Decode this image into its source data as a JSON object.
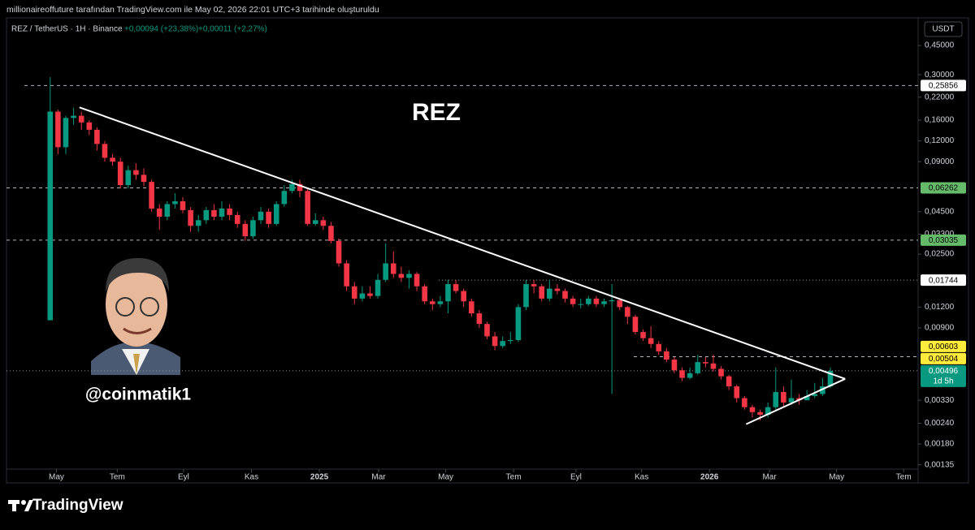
{
  "header": {
    "watermark": "millionaireoffuture tarafından TradingView.com ile May 02, 2026 22:01 UTC+3 tarihinde oluşturuldu"
  },
  "chart_data": {
    "type": "candlestick",
    "symbol": "REZ / TetherUS · 1H · Binance",
    "change_1": "+0,00094 (+23,38%)",
    "change_2": "+0,00011 (+2,27%)",
    "currency": "USDT",
    "annotations": [
      "REZ",
      "@coinmatik1"
    ],
    "up_color": "#089981",
    "down_color": "#f23645",
    "log_scale": true,
    "ylim": [
      0.00105,
      0.66
    ],
    "xlim": [
      -5.6,
      111.25
    ],
    "yticks": [
      {
        "value": 0.45,
        "label": "0,45000"
      },
      {
        "value": 0.3,
        "label": "0,30000"
      },
      {
        "value": 0.22,
        "label": "0,22000"
      },
      {
        "value": 0.16,
        "label": "0,16000"
      },
      {
        "value": 0.12,
        "label": "0,12000"
      },
      {
        "value": 0.09,
        "label": "0,09000"
      },
      {
        "value": 0.045,
        "label": "0,04500"
      },
      {
        "value": 0.033,
        "label": "0,03300"
      },
      {
        "value": 0.025,
        "label": "0,02500"
      },
      {
        "value": 0.012,
        "label": "0,01200"
      },
      {
        "value": 0.009,
        "label": "0,00900"
      },
      {
        "value": 0.0033,
        "label": "0,00330"
      },
      {
        "value": 0.0024,
        "label": "0,00240"
      },
      {
        "value": 0.0018,
        "label": "0,00180"
      },
      {
        "value": 0.00135,
        "label": "0,00135"
      }
    ],
    "xticks": [
      {
        "value": 0.8,
        "label": "May"
      },
      {
        "value": 8.6,
        "label": "Tem"
      },
      {
        "value": 17.1,
        "label": "Eyl"
      },
      {
        "value": 25.8,
        "label": "Kas"
      },
      {
        "value": 34.5,
        "label": "2025"
      },
      {
        "value": 42.1,
        "label": "Mar"
      },
      {
        "value": 50.7,
        "label": "May"
      },
      {
        "value": 59.4,
        "label": "Tem"
      },
      {
        "value": 67.4,
        "label": "Eyl"
      },
      {
        "value": 75.8,
        "label": "Kas"
      },
      {
        "value": 84.5,
        "label": "2026"
      },
      {
        "value": 92.2,
        "label": "Mar"
      },
      {
        "value": 100.8,
        "label": "May"
      },
      {
        "value": 109.4,
        "label": "Tem"
      }
    ],
    "levels": [
      {
        "value": 0.25856,
        "label": "0,25856",
        "box": "#ffffff",
        "text_color": "#000000",
        "line": "dashed",
        "from": -3.3
      },
      {
        "value": 0.06262,
        "label": "0,06262",
        "box": "#66bb6a",
        "text_color": "#000000",
        "line": "dashed",
        "from": -5.6
      },
      {
        "value": 0.03035,
        "label": "0,03035",
        "box": "#66bb6a",
        "text_color": "#000000",
        "line": "dashed",
        "from": -5.6
      },
      {
        "value": 0.01744,
        "label": "0,01744",
        "box": "#ffffff",
        "text_color": "#000000",
        "line": "dotted",
        "from": 49.8
      },
      {
        "value": 0.00603,
        "label": "0,00603",
        "box": "#ffeb3b",
        "text_color": "#000000",
        "line": "dashed",
        "from": 74.8
      },
      {
        "value": 0.00504,
        "label": "0,00504",
        "box": "#ffeb3b",
        "text_color": "#000000",
        "line": "none",
        "from": 74.8
      },
      {
        "value": 0.00496,
        "label": "0,00496",
        "sublabel": "1d 5h",
        "box": "#089981",
        "text_color": "#ffffff",
        "line": "dotted",
        "from": -5.6
      }
    ],
    "trendlines": [
      {
        "from": [
          3.75,
          0.191
        ],
        "to": [
          101.9,
          0.00444
        ]
      },
      {
        "from": [
          89.2,
          0.00237
        ],
        "to": [
          101.9,
          0.00444
        ]
      }
    ],
    "candles": [
      [
        0.01,
        0.29,
        0.01,
        0.18
      ],
      [
        0.18,
        0.185,
        0.1,
        0.11
      ],
      [
        0.11,
        0.17,
        0.1,
        0.165
      ],
      [
        0.165,
        0.19,
        0.15,
        0.17
      ],
      [
        0.17,
        0.18,
        0.14,
        0.155
      ],
      [
        0.155,
        0.16,
        0.13,
        0.14
      ],
      [
        0.14,
        0.145,
        0.105,
        0.115
      ],
      [
        0.115,
        0.12,
        0.09,
        0.095
      ],
      [
        0.095,
        0.1,
        0.085,
        0.09
      ],
      [
        0.09,
        0.095,
        0.062,
        0.065
      ],
      [
        0.065,
        0.085,
        0.062,
        0.08
      ],
      [
        0.08,
        0.088,
        0.07,
        0.075
      ],
      [
        0.075,
        0.082,
        0.064,
        0.068
      ],
      [
        0.068,
        0.07,
        0.045,
        0.047
      ],
      [
        0.047,
        0.05,
        0.035,
        0.042
      ],
      [
        0.042,
        0.052,
        0.04,
        0.05
      ],
      [
        0.05,
        0.058,
        0.047,
        0.052
      ],
      [
        0.052,
        0.055,
        0.044,
        0.046
      ],
      [
        0.046,
        0.048,
        0.034,
        0.037
      ],
      [
        0.037,
        0.043,
        0.034,
        0.04
      ],
      [
        0.04,
        0.048,
        0.038,
        0.046
      ],
      [
        0.046,
        0.05,
        0.04,
        0.042
      ],
      [
        0.042,
        0.052,
        0.04,
        0.047
      ],
      [
        0.047,
        0.05,
        0.04,
        0.043
      ],
      [
        0.043,
        0.045,
        0.036,
        0.038
      ],
      [
        0.038,
        0.04,
        0.03,
        0.032
      ],
      [
        0.032,
        0.042,
        0.031,
        0.04
      ],
      [
        0.04,
        0.048,
        0.038,
        0.045
      ],
      [
        0.045,
        0.047,
        0.036,
        0.038
      ],
      [
        0.038,
        0.052,
        0.037,
        0.05
      ],
      [
        0.05,
        0.065,
        0.048,
        0.06
      ],
      [
        0.06,
        0.07,
        0.058,
        0.066
      ],
      [
        0.066,
        0.07,
        0.055,
        0.06
      ],
      [
        0.06,
        0.062,
        0.037,
        0.038
      ],
      [
        0.038,
        0.044,
        0.037,
        0.04
      ],
      [
        0.04,
        0.042,
        0.035,
        0.037
      ],
      [
        0.037,
        0.039,
        0.029,
        0.03
      ],
      [
        0.03,
        0.031,
        0.021,
        0.022
      ],
      [
        0.022,
        0.023,
        0.015,
        0.016
      ],
      [
        0.016,
        0.017,
        0.0125,
        0.0135
      ],
      [
        0.0135,
        0.016,
        0.013,
        0.0145
      ],
      [
        0.0145,
        0.016,
        0.0135,
        0.014
      ],
      [
        0.014,
        0.019,
        0.0135,
        0.0175
      ],
      [
        0.0175,
        0.029,
        0.017,
        0.022
      ],
      [
        0.022,
        0.026,
        0.018,
        0.019
      ],
      [
        0.019,
        0.021,
        0.017,
        0.018
      ],
      [
        0.018,
        0.02,
        0.0155,
        0.019
      ],
      [
        0.019,
        0.0195,
        0.015,
        0.016
      ],
      [
        0.016,
        0.0165,
        0.0125,
        0.013
      ],
      [
        0.013,
        0.0135,
        0.0115,
        0.0125
      ],
      [
        0.0125,
        0.014,
        0.012,
        0.013
      ],
      [
        0.013,
        0.0175,
        0.011,
        0.0165
      ],
      [
        0.0165,
        0.0175,
        0.0145,
        0.015
      ],
      [
        0.015,
        0.0155,
        0.012,
        0.013
      ],
      [
        0.013,
        0.0135,
        0.0105,
        0.011
      ],
      [
        0.011,
        0.0115,
        0.009,
        0.0095
      ],
      [
        0.0095,
        0.0098,
        0.0077,
        0.008
      ],
      [
        0.008,
        0.0085,
        0.0066,
        0.007
      ],
      [
        0.007,
        0.008,
        0.0068,
        0.0075
      ],
      [
        0.0075,
        0.0085,
        0.0072,
        0.0076
      ],
      [
        0.0076,
        0.0125,
        0.0074,
        0.012
      ],
      [
        0.012,
        0.0175,
        0.0115,
        0.0165
      ],
      [
        0.0165,
        0.0175,
        0.0145,
        0.016
      ],
      [
        0.016,
        0.0165,
        0.013,
        0.0135
      ],
      [
        0.0135,
        0.0175,
        0.013,
        0.0155
      ],
      [
        0.0155,
        0.0165,
        0.0143,
        0.015
      ],
      [
        0.015,
        0.0155,
        0.0128,
        0.0135
      ],
      [
        0.0135,
        0.014,
        0.012,
        0.0125
      ],
      [
        0.0125,
        0.0135,
        0.0118,
        0.0125
      ],
      [
        0.0125,
        0.014,
        0.0122,
        0.0135
      ],
      [
        0.0135,
        0.014,
        0.012,
        0.0125
      ],
      [
        0.0125,
        0.0135,
        0.012,
        0.013
      ],
      [
        0.013,
        0.0165,
        0.0036,
        0.0132
      ],
      [
        0.0132,
        0.0135,
        0.0115,
        0.012
      ],
      [
        0.012,
        0.0122,
        0.0095,
        0.0105
      ],
      [
        0.0105,
        0.0108,
        0.0082,
        0.0085
      ],
      [
        0.0085,
        0.0088,
        0.0075,
        0.0078
      ],
      [
        0.0078,
        0.0092,
        0.0068,
        0.0072
      ],
      [
        0.0072,
        0.0075,
        0.0062,
        0.0065
      ],
      [
        0.0065,
        0.0068,
        0.0056,
        0.0058
      ],
      [
        0.0058,
        0.006,
        0.0048,
        0.005
      ],
      [
        0.005,
        0.0052,
        0.0043,
        0.0045
      ],
      [
        0.0045,
        0.0052,
        0.0044,
        0.0048
      ],
      [
        0.0048,
        0.0062,
        0.0047,
        0.0056
      ],
      [
        0.0056,
        0.006,
        0.0052,
        0.0055
      ],
      [
        0.0055,
        0.0062,
        0.0049,
        0.0051
      ],
      [
        0.0051,
        0.0053,
        0.0044,
        0.0046
      ],
      [
        0.0046,
        0.0047,
        0.0038,
        0.004
      ],
      [
        0.004,
        0.0041,
        0.0032,
        0.0034
      ],
      [
        0.0034,
        0.0035,
        0.0029,
        0.003
      ],
      [
        0.003,
        0.0031,
        0.0026,
        0.0028
      ],
      [
        0.0028,
        0.0029,
        0.0025,
        0.0027
      ],
      [
        0.0027,
        0.0032,
        0.0026,
        0.003
      ],
      [
        0.003,
        0.0052,
        0.0029,
        0.0037
      ],
      [
        0.0037,
        0.004,
        0.003,
        0.0032
      ],
      [
        0.0032,
        0.0044,
        0.0031,
        0.0034
      ],
      [
        0.0034,
        0.0036,
        0.0031,
        0.0033
      ],
      [
        0.0033,
        0.0038,
        0.0033,
        0.0035
      ],
      [
        0.0035,
        0.0042,
        0.0034,
        0.0036
      ],
      [
        0.0036,
        0.0045,
        0.0035,
        0.004
      ],
      [
        0.004,
        0.0052,
        0.0039,
        0.00496
      ]
    ]
  },
  "footer": {
    "brand": "TradingView"
  }
}
